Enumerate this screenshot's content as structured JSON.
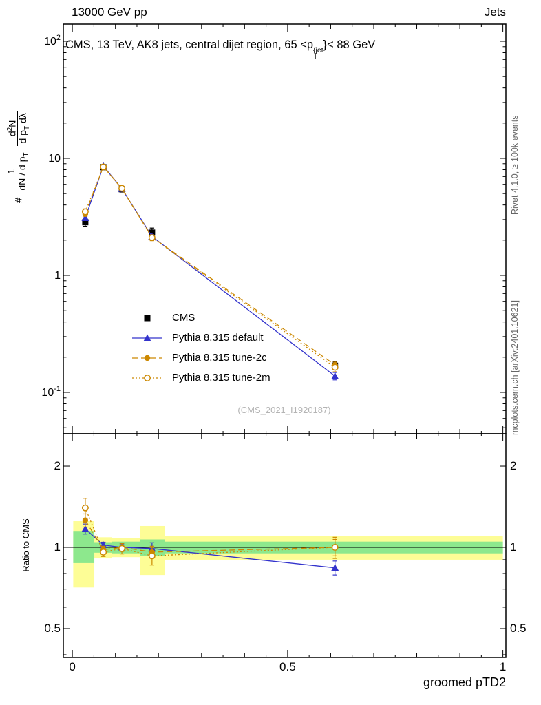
{
  "header": {
    "left": "13000 GeV pp",
    "right": "Jets"
  },
  "title": {
    "pre": "CMS, 13 TeV, AK8 jets, central dijet region, 65 <p",
    "sup": "{jet",
    "sub": "T",
    "post": "}< 88 GeV"
  },
  "ylabel": {
    "hash": "#",
    "frac1_num": "1",
    "frac1_den_pre": "dN / d p",
    "frac1_den_sub": "T",
    "frac2_num_pre": "d",
    "frac2_num_sup": "2",
    "frac2_num_post": "N",
    "frac2_den_pre": "d p",
    "frac2_den_sub": "T",
    "frac2_den_post": " dλ"
  },
  "axes": {
    "xlabel": "groomed pTD2",
    "ratio_ylabel": "Ratio to CMS"
  },
  "side": {
    "rivet": "Rivet 4.1.0, ≥ 100k events",
    "mcplots": "mcplots.cern.ch [arXiv:2401.10621]"
  },
  "watermark": "(CMS_2021_I1920187)",
  "colors": {
    "cms": "#000000",
    "pythia_default": "#3333cc",
    "tune_orange": "#cc8800",
    "band_yellow": "#fdfd96",
    "band_green": "#8de88d"
  },
  "chart_data": [
    {
      "type": "line",
      "title": "CMS, 13 TeV, AK8 jets, central dijet region, 65 < pT{jet} < 88 GeV",
      "xlabel": "groomed pTD2",
      "ylabel": "# 1/(dN/dpT) d2N/(dpT dlambda)",
      "xscale": "linear",
      "yscale": "log",
      "xlim": [
        -0.021,
        1.007
      ],
      "ylim": [
        0.044,
        140
      ],
      "grid": false,
      "legend_position": "center-left",
      "xticks": [
        {
          "v": 0,
          "label": "0"
        },
        {
          "v": 0.5,
          "label": "0.5"
        },
        {
          "v": 1,
          "label": "1"
        }
      ],
      "yticks": [
        {
          "v": 100,
          "base": "10",
          "exp": "2"
        },
        {
          "v": 10,
          "base": "10",
          "exp": ""
        },
        {
          "v": 1,
          "base": "1",
          "exp": ""
        },
        {
          "v": 0.1,
          "base": "10",
          "exp": "-1"
        }
      ],
      "x": [
        0.03,
        0.072,
        0.115,
        0.185,
        0.61
      ],
      "series": [
        {
          "name": "CMS",
          "marker": "square",
          "color": "#000000",
          "line": "none",
          "values": [
            2.85,
            8.4,
            5.45,
            2.32,
            0.169
          ],
          "yerr": [
            0.22,
            0.35,
            0.3,
            0.22,
            0.013
          ]
        },
        {
          "name": "Pythia 8.315 default",
          "marker": "triangle",
          "color": "#3333cc",
          "line": "solid",
          "values": [
            3.1,
            8.6,
            5.5,
            2.15,
            0.138
          ],
          "yerr": [
            0.12,
            0.15,
            0.12,
            0.08,
            0.01
          ]
        },
        {
          "name": "Pythia 8.315 tune-2c",
          "marker": "circle",
          "color": "#cc8800",
          "line": "dash",
          "values": [
            3.35,
            8.5,
            5.5,
            2.12,
            0.172
          ],
          "yerr": [
            0.15,
            0.15,
            0.12,
            0.09,
            0.012
          ]
        },
        {
          "name": "Pythia 8.315 tune-2m",
          "marker": "circle-open",
          "color": "#cc8800",
          "line": "dot",
          "values": [
            3.5,
            8.45,
            5.55,
            2.1,
            0.164
          ],
          "yerr": [
            0.2,
            0.18,
            0.15,
            0.12,
            0.014
          ]
        }
      ]
    },
    {
      "type": "line",
      "title": "Ratio to CMS",
      "yscale": "log",
      "ylim": [
        0.39,
        2.64
      ],
      "reference": 1,
      "yticks": [
        {
          "v": 2,
          "label": "2"
        },
        {
          "v": 1,
          "label": "1"
        },
        {
          "v": 0.5,
          "label": "0.5"
        }
      ],
      "bands": {
        "yellow": [
          {
            "x0": 0.002,
            "x1": 0.051,
            "lo": 0.71,
            "hi": 1.25
          },
          {
            "x0": 0.051,
            "x1": 0.0925,
            "lo": 0.91,
            "hi": 1.09
          },
          {
            "x0": 0.0925,
            "x1": 0.1575,
            "lo": 0.92,
            "hi": 1.08
          },
          {
            "x0": 0.1575,
            "x1": 0.215,
            "lo": 0.79,
            "hi": 1.2
          },
          {
            "x0": 0.215,
            "x1": 1.0,
            "lo": 0.9,
            "hi": 1.1
          }
        ],
        "green": [
          {
            "x0": 0.002,
            "x1": 0.051,
            "lo": 0.874,
            "hi": 1.15
          },
          {
            "x0": 0.051,
            "x1": 0.0925,
            "lo": 0.955,
            "hi": 1.045
          },
          {
            "x0": 0.0925,
            "x1": 0.1575,
            "lo": 0.95,
            "hi": 1.05
          },
          {
            "x0": 0.1575,
            "x1": 0.215,
            "lo": 0.93,
            "hi": 1.07
          },
          {
            "x0": 0.215,
            "x1": 1.0,
            "lo": 0.95,
            "hi": 1.05
          }
        ]
      },
      "x": [
        0.03,
        0.072,
        0.115,
        0.185,
        0.61
      ],
      "series": [
        {
          "name": "Pythia 8.315 default",
          "marker": "triangle",
          "color": "#3333cc",
          "line": "solid",
          "values": [
            1.17,
            1.02,
            1.0,
            0.99,
            0.84
          ],
          "yerr": [
            0.05,
            0.025,
            0.03,
            0.05,
            0.05
          ]
        },
        {
          "name": "Pythia 8.315 tune-2c",
          "marker": "circle",
          "color": "#cc8800",
          "line": "dash",
          "values": [
            1.26,
            0.98,
            1.0,
            0.96,
            1.0
          ],
          "yerr": [
            0.07,
            0.03,
            0.035,
            0.05,
            0.07
          ]
        },
        {
          "name": "Pythia 8.315 tune-2m",
          "marker": "circle-open",
          "color": "#cc8800",
          "line": "dot",
          "values": [
            1.4,
            0.96,
            0.99,
            0.93,
            1.0
          ],
          "yerr": [
            0.12,
            0.035,
            0.045,
            0.07,
            0.09
          ]
        }
      ]
    }
  ]
}
